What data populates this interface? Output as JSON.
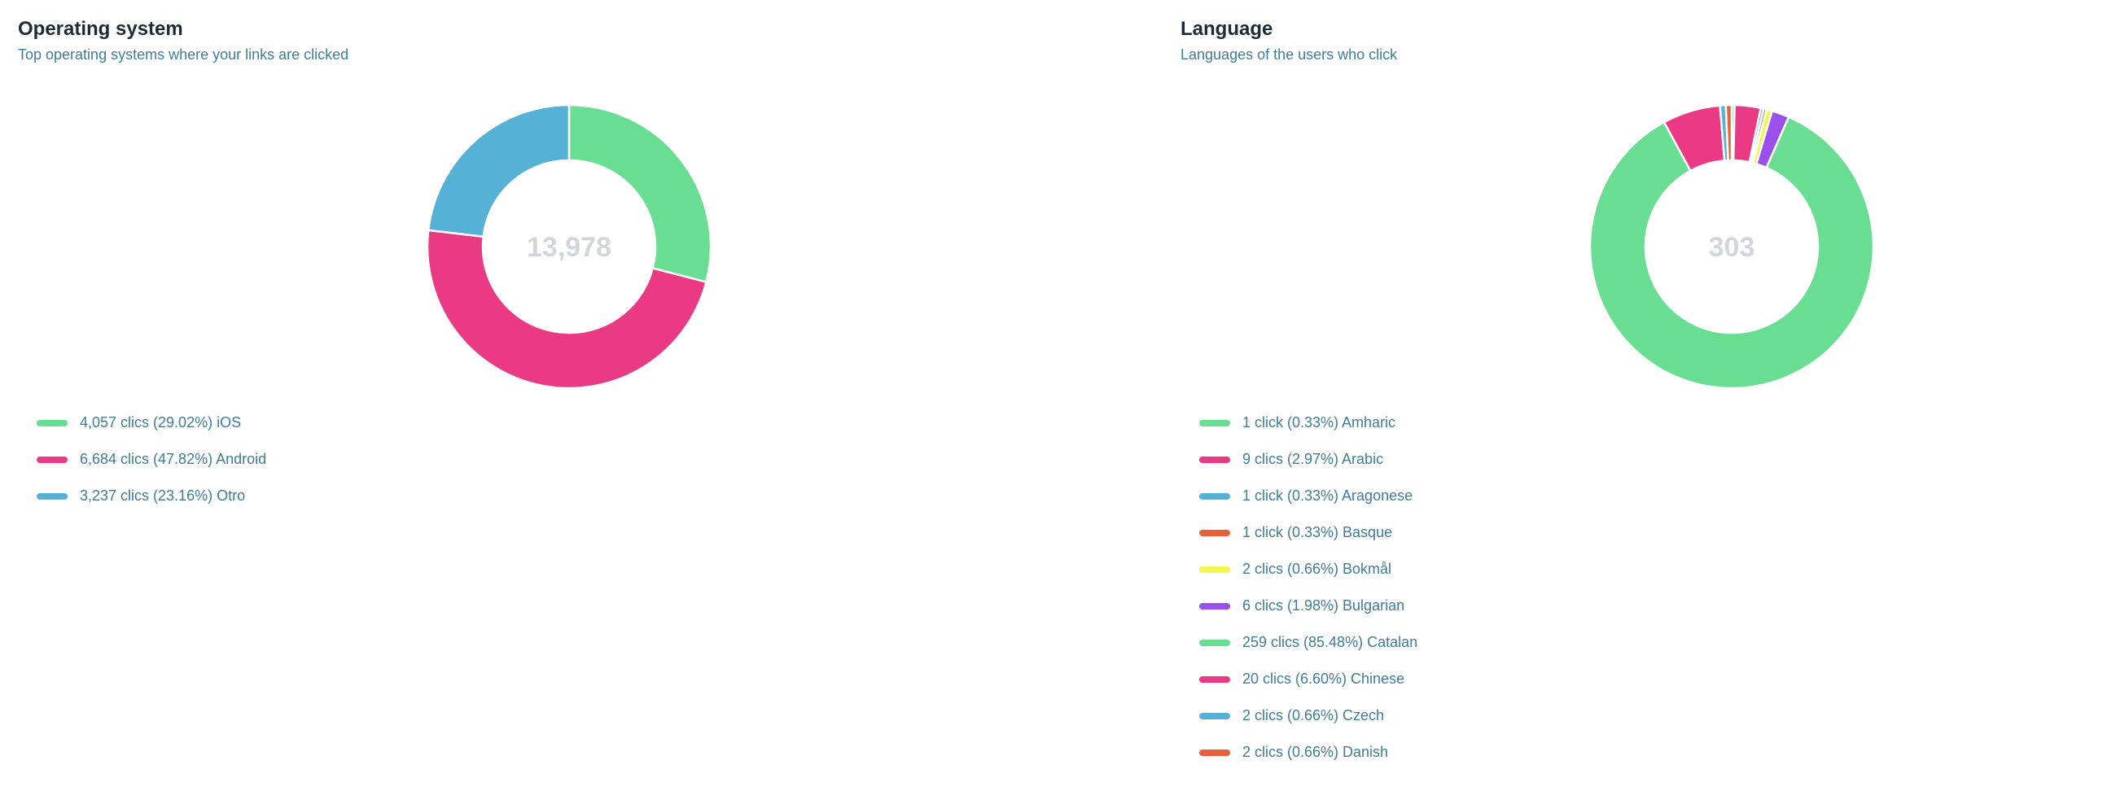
{
  "charts": [
    {
      "title": "Operating system",
      "subtitle": "Top operating systems where your links are clicked",
      "total_label": "13,978",
      "legend": [
        {
          "label": "4,057 clics (29.02%) iOS",
          "color": "#69dd92"
        },
        {
          "label": "6,684 clics (47.82%) Android",
          "color": "#ea3a83"
        },
        {
          "label": "3,237 clics (23.16%) Otro",
          "color": "#55b2d6"
        }
      ]
    },
    {
      "title": "Language",
      "subtitle": "Languages of the users who click",
      "total_label": "303",
      "legend": [
        {
          "label": "1 click (0.33%) Amharic",
          "color": "#69dd92"
        },
        {
          "label": "9 clics (2.97%) Arabic",
          "color": "#ea3a83"
        },
        {
          "label": "1 click (0.33%) Aragonese",
          "color": "#55b2d6"
        },
        {
          "label": "1 click (0.33%) Basque",
          "color": "#e6603c"
        },
        {
          "label": "2 clics (0.66%) Bokmål",
          "color": "#eef84d"
        },
        {
          "label": "6 clics (1.98%) Bulgarian",
          "color": "#9a50ea"
        },
        {
          "label": "259 clics (85.48%) Catalan",
          "color": "#69dd92"
        },
        {
          "label": "20 clics (6.60%) Chinese",
          "color": "#ea3a83"
        },
        {
          "label": "2 clics (0.66%) Czech",
          "color": "#55b2d6"
        },
        {
          "label": "2 clics (0.66%) Danish",
          "color": "#e6603c"
        }
      ]
    }
  ],
  "chart_data": [
    {
      "type": "pie",
      "title": "Operating system",
      "subtitle": "Top operating systems where your links are clicked",
      "categories": [
        "iOS",
        "Android",
        "Otro"
      ],
      "values": [
        4057,
        6684,
        3237
      ],
      "colors": [
        "#69dd92",
        "#ea3a83",
        "#55b2d6"
      ],
      "center_label": "13,978",
      "legend_position": "bottom-left"
    },
    {
      "type": "pie",
      "title": "Language",
      "subtitle": "Languages of the users who click",
      "categories": [
        "Amharic",
        "Arabic",
        "Aragonese",
        "Basque",
        "Bokmål",
        "Bulgarian",
        "Catalan",
        "Chinese",
        "Czech",
        "Danish"
      ],
      "values": [
        1,
        9,
        1,
        1,
        2,
        6,
        259,
        20,
        2,
        2
      ],
      "colors": [
        "#69dd92",
        "#ea3a83",
        "#55b2d6",
        "#e6603c",
        "#eef84d",
        "#9a50ea",
        "#69dd92",
        "#ea3a83",
        "#55b2d6",
        "#e6603c"
      ],
      "center_label": "303",
      "legend_position": "bottom-left"
    }
  ]
}
